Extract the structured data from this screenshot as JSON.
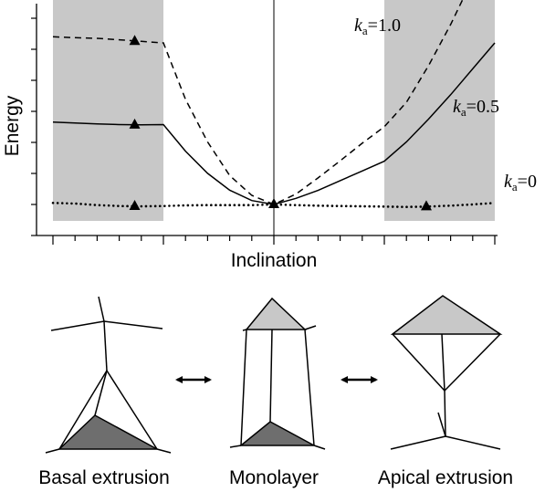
{
  "chart_data": {
    "type": "line",
    "xlabel": "Inclination",
    "ylabel": "Energy",
    "grid": false,
    "x": [
      -10,
      -9,
      -8,
      -7,
      -6,
      -5,
      -4,
      -3,
      -2,
      -1,
      0,
      1,
      2,
      3,
      4,
      5,
      6,
      7,
      8,
      9,
      10
    ],
    "shaded_regions": [
      [
        -10,
        -5
      ],
      [
        5,
        10
      ]
    ],
    "series": [
      {
        "name": "k_a=1.0",
        "label_main": "k",
        "label_sub": "a",
        "label_value": "=1.0",
        "style": "dashed",
        "values": [
          5.5,
          5.47,
          5.45,
          5.4,
          5.35,
          5.3,
          3.45,
          2.05,
          0.95,
          0.3,
          0.0,
          0.34,
          0.87,
          1.43,
          2.01,
          2.55,
          3.35,
          4.55,
          5.9,
          7.4,
          9.0
        ]
      },
      {
        "name": "k_a=0.5",
        "label_main": "k",
        "label_sub": "a",
        "label_value": "=0.5",
        "style": "solid",
        "values": [
          2.7,
          2.67,
          2.64,
          2.62,
          2.61,
          2.62,
          1.75,
          1.02,
          0.47,
          0.13,
          0.0,
          0.2,
          0.46,
          0.78,
          1.1,
          1.42,
          2.05,
          2.8,
          3.6,
          4.45,
          5.3
        ]
      },
      {
        "name": "k_a=0",
        "label_main": "k",
        "label_sub": "a",
        "label_value": "=0",
        "style": "dotted",
        "values": [
          0.05,
          0.03,
          -0.02,
          -0.05,
          -0.06,
          -0.05,
          -0.03,
          -0.02,
          -0.02,
          -0.02,
          0.0,
          -0.02,
          -0.04,
          -0.05,
          -0.06,
          -0.07,
          -0.08,
          -0.07,
          -0.04,
          0.0,
          0.05
        ]
      }
    ],
    "minima": [
      {
        "series": "k_a=1.0",
        "x": -6.3,
        "y": 5.35
      },
      {
        "series": "k_a=0.5",
        "x": -6.3,
        "y": 2.61
      },
      {
        "series": "k_a=0",
        "x": -6.3,
        "y": -0.06
      },
      {
        "series": "all",
        "x": 0,
        "y": 0.0
      },
      {
        "series": "k_a=0",
        "x": 6.9,
        "y": -0.07
      }
    ]
  },
  "diagram": {
    "labels": {
      "basal": "Basal extrusion",
      "monolayer": "Monolayer",
      "apical": "Apical extrusion"
    },
    "colors": {
      "shade": "#c8c8c8",
      "basal_cell": "#6e6e6e",
      "apical_cell": "#c8c8c8"
    }
  }
}
